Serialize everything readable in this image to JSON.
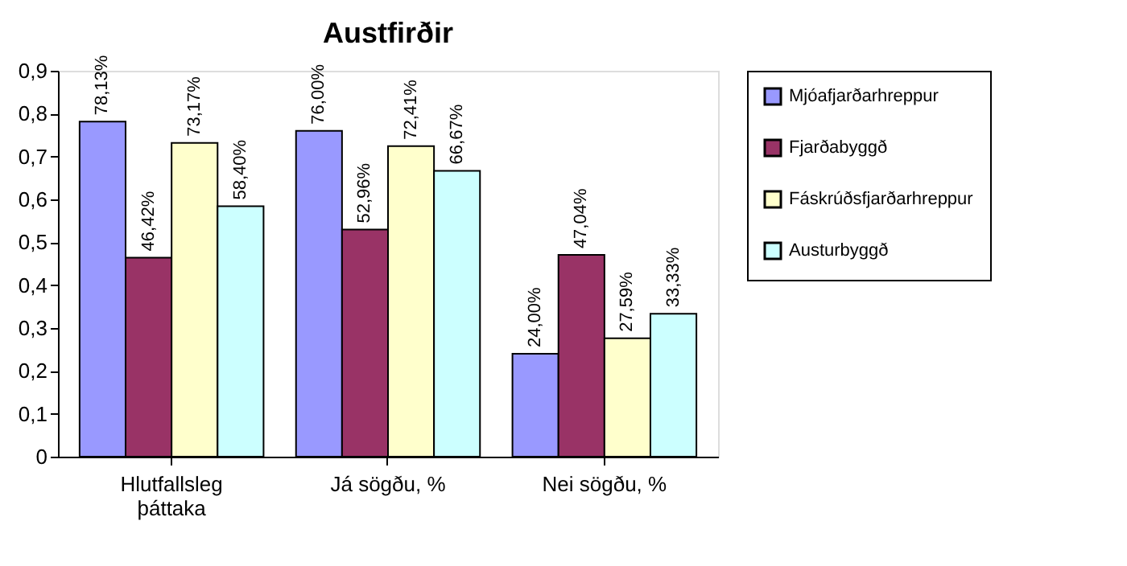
{
  "chart_data": {
    "type": "bar",
    "title": "Austfirðir",
    "categories": [
      "Hlutfallsleg þáttaka",
      "Já sögðu, %",
      "Nei sögðu, %"
    ],
    "series": [
      {
        "name": "Mjóafjarðarhreppur",
        "color": "#9999ff",
        "values": [
          0.7813,
          0.76,
          0.24
        ],
        "value_labels": [
          "78,13%",
          "76,00%",
          "24,00%"
        ]
      },
      {
        "name": "Fjarðabyggð",
        "color": "#993366",
        "values": [
          0.4642,
          0.5296,
          0.4704
        ],
        "value_labels": [
          "46,42%",
          "52,96%",
          "47,04%"
        ]
      },
      {
        "name": "Fáskrúðsfjarðarhreppur",
        "color": "#ffffcc",
        "values": [
          0.7317,
          0.7241,
          0.2759
        ],
        "value_labels": [
          "73,17%",
          "72,41%",
          "27,59%"
        ]
      },
      {
        "name": "Austurbyggð",
        "color": "#ccffff",
        "values": [
          0.584,
          0.6667,
          0.3333
        ],
        "value_labels": [
          "58,40%",
          "66,67%",
          "33,33%"
        ]
      }
    ],
    "ylim": [
      0,
      0.9
    ],
    "yticks": [
      0,
      {
        "value": 0.1,
        "label": "0,1"
      },
      {
        "value": 0.2,
        "label": "0,2"
      },
      {
        "value": 0.3,
        "label": "0,3"
      },
      {
        "value": 0.4,
        "label": "0,4"
      },
      {
        "value": 0.5,
        "label": "0,5"
      },
      {
        "value": 0.6,
        "label": "0,6"
      },
      {
        "value": 0.7,
        "label": "0,7"
      },
      {
        "value": 0.8,
        "label": "0,8"
      },
      {
        "value": 0.9,
        "label": "0,9"
      }
    ],
    "grid": false,
    "legend": "right"
  }
}
